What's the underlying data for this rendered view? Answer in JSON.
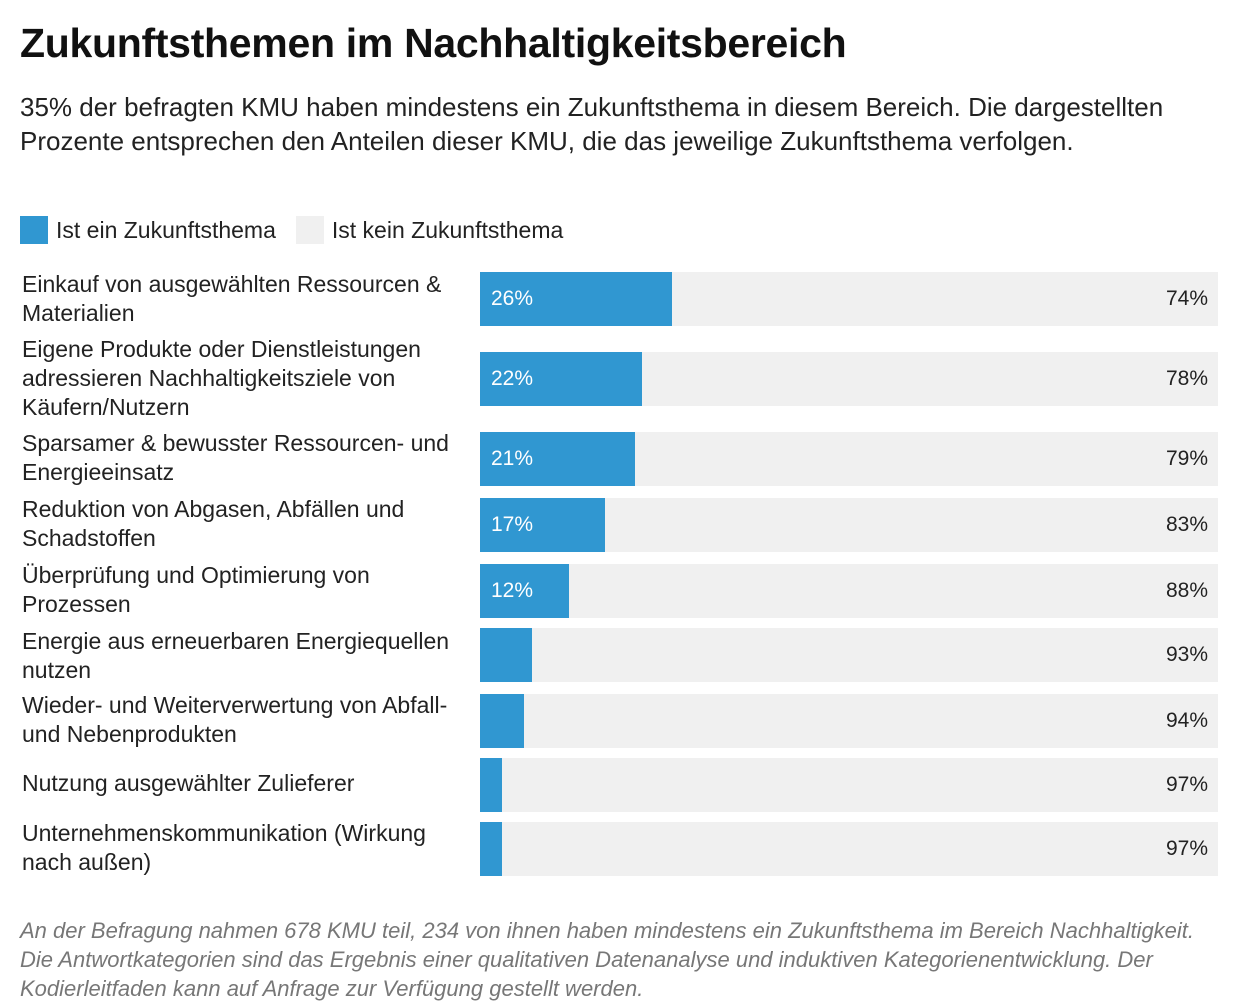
{
  "title": "Zukunftsthemen im Nachhaltigkeitsbereich",
  "subtitle": "35% der befragten KMU haben mindestens ein Zukunftsthema in diesem Bereich. Die dargestellten Prozente entsprechen den Anteilen dieser KMU, die das jeweilige Zukunftsthema verfolgen.",
  "legend": [
    {
      "label": "Ist ein Zukunftsthema",
      "color": "#3097d1"
    },
    {
      "label": "Ist kein Zukunftsthema",
      "color": "#f0f0f0"
    }
  ],
  "chart_data": {
    "type": "bar",
    "orientation": "horizontal",
    "stacked": true,
    "categories": [
      "Einkauf von ausgewählten Ressourcen & Materialien",
      "Eigene Produkte oder Dienstleistungen adressieren Nachhaltigkeitsziele von Käufern/Nutzern",
      "Sparsamer & bewusster Ressourcen- und Energieeinsatz",
      "Reduktion von Abgasen, Abfällen und Schadstoffen",
      "Überprüfung und Optimierung von Prozessen",
      "Energie aus erneuerbaren Energiequellen nutzen",
      "Wieder- und Weiterverwertung von Abfall- und Nebenprodukten",
      "Nutzung ausgewählter Zulieferer",
      "Unternehmenskommunikation (Wirkung nach außen)"
    ],
    "series": [
      {
        "name": "Ist ein Zukunftsthema",
        "values": [
          26,
          22,
          21,
          17,
          12,
          7,
          6,
          3,
          3
        ],
        "labels": [
          "26%",
          "22%",
          "21%",
          "17%",
          "12%",
          "",
          "",
          "",
          ""
        ],
        "color": "#3097d1"
      },
      {
        "name": "Ist kein Zukunftsthema",
        "values": [
          74,
          78,
          79,
          83,
          88,
          93,
          94,
          97,
          97
        ],
        "labels": [
          "74%",
          "78%",
          "79%",
          "83%",
          "88%",
          "93%",
          "94%",
          "97%",
          "97%"
        ],
        "color": "#f0f0f0"
      }
    ],
    "xlim": [
      0,
      100
    ],
    "unit": "%"
  },
  "footnote": "An der Befragung nahmen 678 KMU teil, 234 von ihnen haben mindestens ein Zukunftsthema im Bereich Nachhaltigkeit. Die Antwortkategorien sind das Ergebnis einer qualitativen Datenanalyse und induktiven Kategorienentwicklung. Der Kodierleitfaden kann auf Anfrage zur Verfügung gestellt werden."
}
